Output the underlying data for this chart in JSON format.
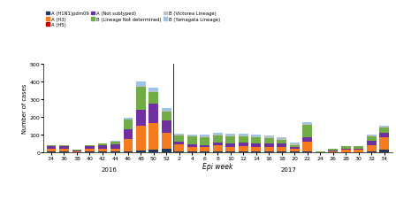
{
  "epi_weeks": [
    "34",
    "36",
    "38",
    "40",
    "42",
    "44",
    "46",
    "48",
    "50",
    "52",
    "2",
    "4",
    "6",
    "8",
    "10",
    "12",
    "14",
    "16",
    "18",
    "20",
    "22",
    "24",
    "26",
    "28",
    "30",
    "32",
    "34"
  ],
  "series": {
    "A_H1N1": [
      5,
      5,
      2,
      5,
      5,
      5,
      8,
      10,
      15,
      20,
      5,
      5,
      5,
      5,
      5,
      5,
      5,
      5,
      5,
      5,
      8,
      0,
      3,
      3,
      3,
      8,
      15
    ],
    "A_H3": [
      18,
      18,
      5,
      18,
      18,
      18,
      70,
      140,
      150,
      90,
      40,
      25,
      25,
      35,
      28,
      30,
      28,
      28,
      28,
      18,
      55,
      0,
      4,
      12,
      12,
      35,
      70
    ],
    "A_H5": [
      0,
      0,
      0,
      0,
      0,
      0,
      0,
      2,
      2,
      2,
      0,
      0,
      0,
      0,
      0,
      0,
      0,
      0,
      0,
      0,
      0,
      0,
      0,
      0,
      0,
      0,
      0
    ],
    "A_NotSubtyped": [
      12,
      12,
      5,
      12,
      18,
      22,
      55,
      90,
      110,
      70,
      18,
      18,
      12,
      18,
      18,
      22,
      18,
      18,
      18,
      8,
      25,
      0,
      4,
      8,
      8,
      22,
      25
    ],
    "B_LineageND": [
      5,
      5,
      5,
      5,
      12,
      18,
      55,
      130,
      65,
      50,
      35,
      45,
      45,
      40,
      40,
      35,
      35,
      28,
      20,
      12,
      70,
      5,
      8,
      12,
      12,
      25,
      30
    ],
    "B_Victoria": [
      0,
      0,
      0,
      0,
      0,
      0,
      0,
      5,
      5,
      5,
      5,
      5,
      5,
      5,
      5,
      5,
      5,
      10,
      8,
      8,
      5,
      0,
      0,
      0,
      0,
      5,
      5
    ],
    "B_Yamagata": [
      0,
      0,
      0,
      0,
      0,
      5,
      8,
      25,
      18,
      12,
      5,
      5,
      8,
      8,
      8,
      8,
      8,
      8,
      8,
      5,
      8,
      0,
      0,
      0,
      0,
      8,
      8
    ]
  },
  "colors": {
    "A_H1N1": "#1f3864",
    "A_H3": "#f47b20",
    "A_H5": "#c00000",
    "A_NotSubtyped": "#7030a0",
    "B_LineageND": "#70ad47",
    "B_Victoria": "#c0c0c0",
    "B_Yamagata": "#9dc3e6"
  },
  "legend_labels": {
    "A_H1N1": "A (H1N1)pdm09",
    "A_H3": "A (H3)",
    "A_H5": "A (H5)",
    "A_NotSubtyped": "A (Not subtyped)",
    "B_LineageND": "B (Lineage Not determined)",
    "B_Victoria": "B (Victorea Lineage)",
    "B_Yamagata": "B (Yamagata Lineage)"
  },
  "ylabel": "Number of cases",
  "xlabel": "Epi week",
  "ylim": [
    0,
    500
  ],
  "yticks": [
    0,
    100,
    200,
    300,
    400,
    500
  ],
  "background_color": "#ffffff"
}
